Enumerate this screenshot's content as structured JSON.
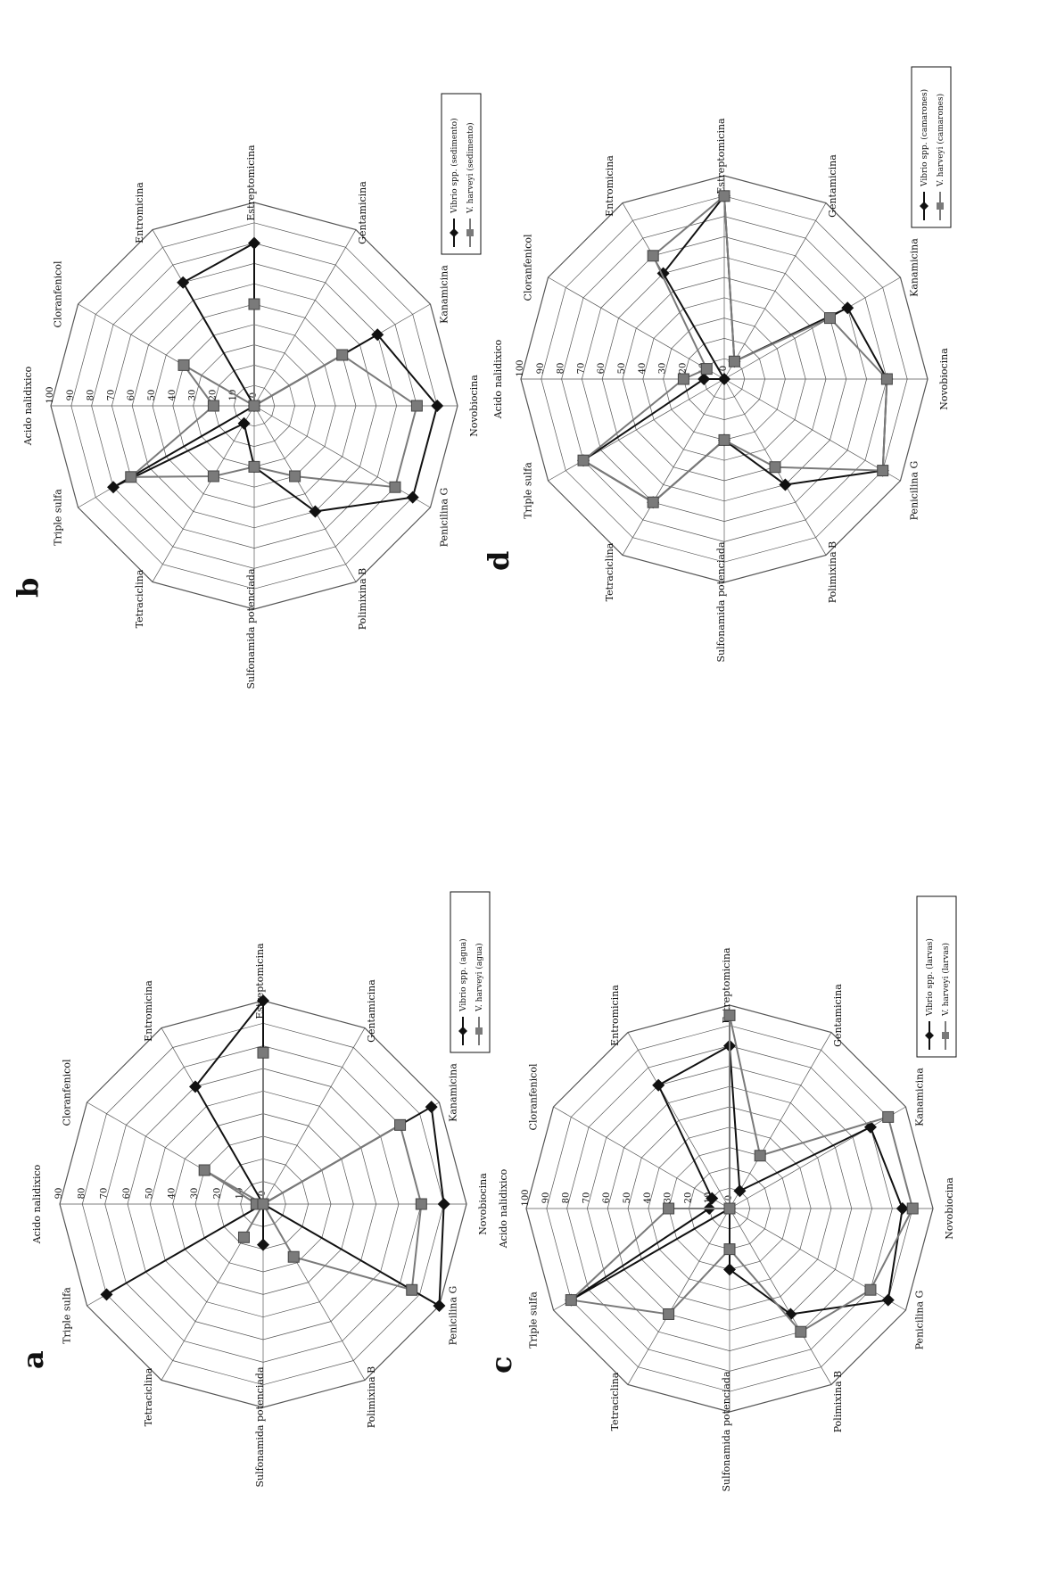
{
  "figure": {
    "background": "#ffffff",
    "line_color": "#111111",
    "grid_color": "#555555"
  },
  "series_styles": [
    {
      "color": "#111111",
      "marker": "diamond"
    },
    {
      "color": "#7a7a7a",
      "marker": "square"
    }
  ],
  "chart_data": [
    {
      "panel": "a",
      "type": "radar",
      "categories": [
        "Acido nalidixico",
        "Cloranfenicol",
        "Entromicina",
        "Estreptomicina",
        "Gentamicina",
        "Kanamicina",
        "Novobiocina",
        "Penicilina G",
        "Polimixina B",
        "Sulfonamida potenciada",
        "Tetraciclina",
        "Triple sulfa"
      ],
      "rlim": [
        0,
        90
      ],
      "ticks": [
        "90",
        "80",
        "70",
        "60",
        "50",
        "40",
        "30",
        "20",
        "10",
        "0"
      ],
      "legend": "right",
      "grid": true,
      "series": [
        {
          "name": "Vibrio spp. (agua)",
          "values": [
            0,
            0,
            60,
            90,
            0,
            86,
            80,
            90,
            0,
            18,
            0,
            80
          ]
        },
        {
          "name": "V. harveyi (agua)",
          "values": [
            3,
            30,
            0,
            67,
            0,
            70,
            70,
            76,
            27,
            0,
            17,
            0
          ]
        }
      ]
    },
    {
      "panel": "b",
      "type": "radar",
      "categories": [
        "Acido nalidixico",
        "Cloranfenicol",
        "Entromicina",
        "Estreptomicina",
        "Gentamicina",
        "Kanamicina",
        "Novobiocina",
        "Penicilina G",
        "Polimixina B",
        "Sulfonamida potenciada",
        "Tetraciclina",
        "Triple sulfa"
      ],
      "rlim": [
        0,
        100
      ],
      "ticks": [
        "100",
        "90",
        "80",
        "70",
        "60",
        "50",
        "40",
        "30",
        "20",
        "10",
        "0"
      ],
      "legend": "right",
      "grid": true,
      "series": [
        {
          "name": "Vibrio spp. (sedimento)",
          "values": [
            0,
            0,
            70,
            80,
            0,
            70,
            90,
            90,
            60,
            30,
            10,
            80
          ]
        },
        {
          "name": "V. harveyi (sedimento)",
          "values": [
            20,
            40,
            0,
            50,
            0,
            50,
            80,
            80,
            40,
            30,
            40,
            70
          ]
        }
      ]
    },
    {
      "panel": "c",
      "type": "radar",
      "categories": [
        "Acido nalidixico",
        "Cloranfenicol",
        "Entromicina",
        "Estreptomicina",
        "Gentamicina",
        "Kanamicina",
        "Novobiocina",
        "Penicilina G",
        "Polimixina B",
        "Sulfonamida potenciada",
        "Tetraciclina",
        "Triple sulfa"
      ],
      "rlim": [
        0,
        100
      ],
      "ticks": [
        "100",
        "90",
        "80",
        "70",
        "60",
        "50",
        "40",
        "30",
        "20",
        "10",
        "0"
      ],
      "legend": "right",
      "grid": true,
      "series": [
        {
          "name": "Vibrio spp. (larvas)",
          "values": [
            10,
            10,
            70,
            80,
            10,
            80,
            85,
            90,
            60,
            30,
            0,
            90
          ]
        },
        {
          "name": "V. harveyi (larvas)",
          "values": [
            30,
            0,
            0,
            95,
            30,
            90,
            90,
            80,
            70,
            20,
            60,
            90
          ]
        }
      ]
    },
    {
      "panel": "d",
      "type": "radar",
      "categories": [
        "Acido nalidixico",
        "Cloranfenicol",
        "Entromicina",
        "Estreptomicina",
        "Gentamicina",
        "Kanamicina",
        "Novobiocina",
        "Penicilina G",
        "Polimixina B",
        "Sulfonamida potenciada",
        "Tetraciclina",
        "Triple sulfa"
      ],
      "rlim": [
        0,
        100
      ],
      "ticks": [
        "100",
        "90",
        "80",
        "70",
        "60",
        "50",
        "40",
        "30",
        "20",
        "10",
        "0"
      ],
      "legend": "right",
      "grid": true,
      "series": [
        {
          "name": "Vibrio spp. (camarones)",
          "values": [
            10,
            0,
            60,
            90,
            10,
            70,
            80,
            90,
            60,
            30,
            70,
            80
          ]
        },
        {
          "name": "V. harveyi (camarones)",
          "values": [
            20,
            10,
            70,
            90,
            10,
            60,
            80,
            90,
            50,
            30,
            70,
            80
          ]
        }
      ]
    }
  ]
}
